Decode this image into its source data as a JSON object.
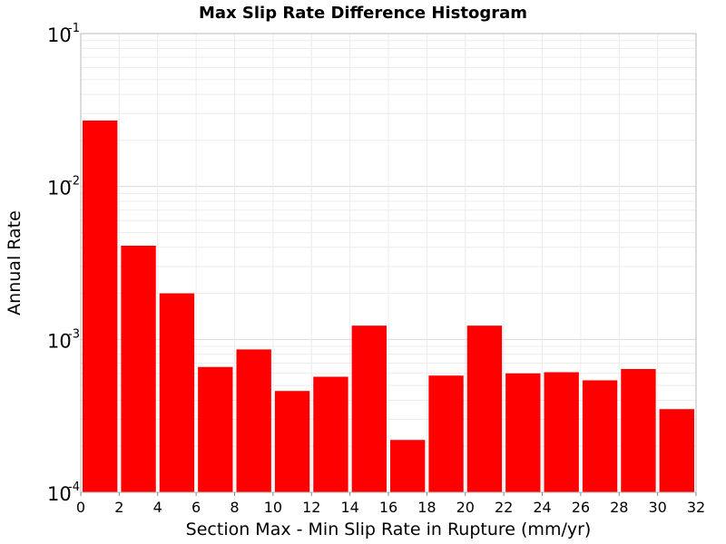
{
  "chart_data": {
    "type": "bar",
    "title": "Max Slip Rate Difference Histogram",
    "xlabel": "Section Max - Min Slip Rate in Rupture (mm/yr)",
    "ylabel": "Annual Rate",
    "x_scale": "linear",
    "y_scale": "log",
    "xlim": [
      0,
      32
    ],
    "ylim": [
      0.0001,
      0.1
    ],
    "grid": true,
    "legend": "none",
    "bar_color": "#FF0000",
    "bin_width": 2,
    "x_ticks": [
      "0",
      "2",
      "4",
      "6",
      "8",
      "10",
      "12",
      "14",
      "16",
      "18",
      "20",
      "22",
      "24",
      "26",
      "28",
      "30",
      "32"
    ],
    "y_ticks": [
      {
        "base": "10",
        "exp": "-1",
        "value": 0.1
      },
      {
        "base": "10",
        "exp": "-2",
        "value": 0.01
      },
      {
        "base": "10",
        "exp": "-3",
        "value": 0.001
      },
      {
        "base": "10",
        "exp": "-4",
        "value": 0.0001
      }
    ],
    "x": [
      1,
      3,
      5,
      7,
      9,
      11,
      13,
      15,
      17,
      19,
      21,
      23,
      25,
      27,
      29,
      31
    ],
    "values": [
      0.027,
      0.0041,
      0.002,
      0.00066,
      0.00086,
      0.00046,
      0.00057,
      0.00123,
      0.00022,
      0.00058,
      0.00123,
      0.0006,
      0.00061,
      0.00054,
      0.00064,
      0.00035
    ]
  }
}
